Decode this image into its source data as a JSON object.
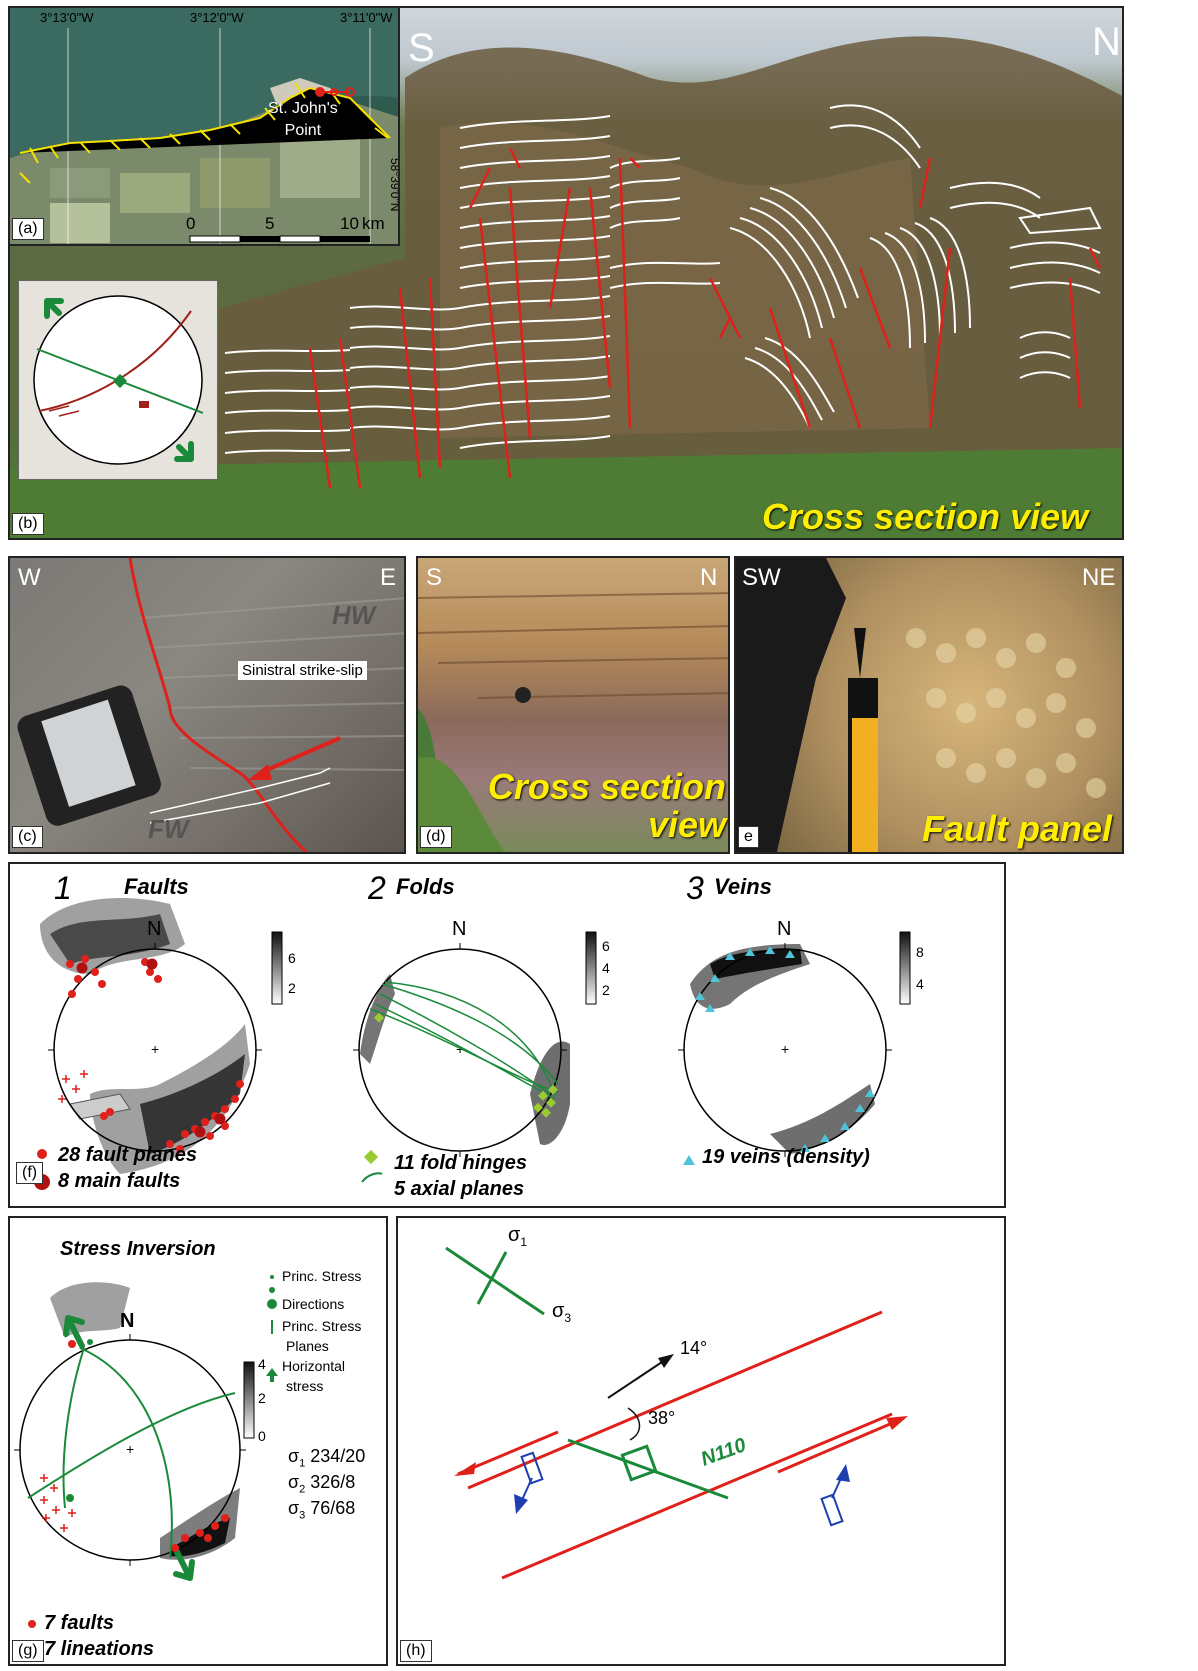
{
  "panel_a": {
    "coords": [
      "3°13'0\"W",
      "3°12'0\"W",
      "3°11'0\"W"
    ],
    "lat": "58°39'0\"N",
    "place": "St. John's\nPoint",
    "scale_ticks": [
      "0",
      "5",
      "10"
    ],
    "scale_unit": "km",
    "label": "(a)"
  },
  "panel_b": {
    "label": "(b)",
    "dir_left": "S",
    "dir_right": "N",
    "caption": "Cross section view"
  },
  "panel_c": {
    "label": "(c)",
    "dir_left": "W",
    "dir_right": "E",
    "hw": "HW",
    "fw": "FW",
    "note": "Sinistral strike-slip"
  },
  "panel_d": {
    "label": "(d)",
    "dir_left": "S",
    "dir_right": "N",
    "caption": "Cross section\nview"
  },
  "panel_e": {
    "label": "e",
    "dir_left": "SW",
    "dir_right": "NE",
    "caption": "Fault panel"
  },
  "panel_f": {
    "label": "(f)",
    "plot1": {
      "number": "1",
      "title": "Faults",
      "north": "N",
      "scale": [
        "6",
        "2"
      ]
    },
    "plot2": {
      "number": "2",
      "title": "Folds",
      "north": "N",
      "scale": [
        "6",
        "4",
        "2"
      ]
    },
    "plot3": {
      "number": "3",
      "title": "Veins",
      "north": "N",
      "scale": [
        "8",
        "4"
      ]
    },
    "legend1a": "28 fault planes",
    "legend1b": "8 main faults",
    "legend2a": "11 fold hinges",
    "legend2b": "5 axial planes",
    "legend3": "19 veins (density)"
  },
  "panel_g": {
    "label": "(g)",
    "title": "Stress Inversion",
    "north": "N",
    "scale": [
      "4",
      "2",
      "0"
    ],
    "key1": "Princ. Stress",
    "key1b": "Directions",
    "key2": "Princ. Stress",
    "key2b": "Planes",
    "key3": "Horizontal",
    "key3b": "stress",
    "s1": "234/20",
    "s2": "326/8",
    "s3": "76/68",
    "legend1": "7 faults",
    "legend2": "7 lineations"
  },
  "panel_h": {
    "label": "(h)",
    "sigma1": "σ",
    "sigma1_sub": "1",
    "sigma3": "σ",
    "sigma3_sub": "3",
    "angle1": "14°",
    "angle2": "38°",
    "trend": "N110"
  },
  "colors": {
    "fault_red": "#e0201a",
    "green": "#1a8a3a",
    "blue": "#1f3fb0",
    "yellow": "#ffee00",
    "vein_cyan": "#4fc4d8",
    "hinge_green": "#99cc33"
  }
}
